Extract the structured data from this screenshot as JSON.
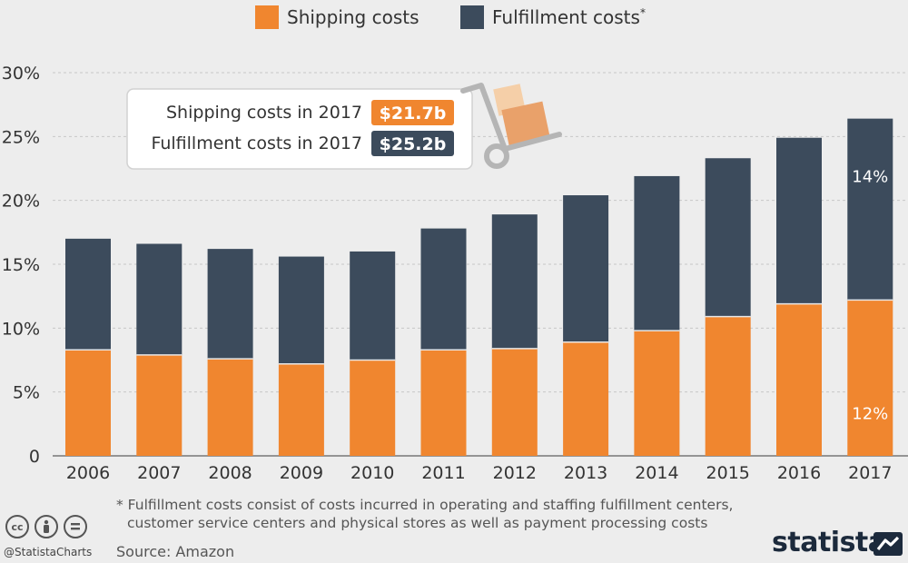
{
  "legend": {
    "items": [
      {
        "label": "Shipping costs",
        "color": "#f0862f"
      },
      {
        "label": "Fulfillment costs",
        "color": "#3c4b5c",
        "sup": "*"
      }
    ]
  },
  "callout": {
    "rows": [
      {
        "label": "Shipping costs in 2017",
        "value": "$21.7b",
        "color": "#f0862f"
      },
      {
        "label": "Fulfillment costs in 2017",
        "value": "$25.2b",
        "color": "#3c4b5c"
      }
    ],
    "icon": "hand-truck-boxes-icon"
  },
  "chart_data": {
    "type": "bar",
    "stacked": true,
    "categories": [
      "2006",
      "2007",
      "2008",
      "2009",
      "2010",
      "2011",
      "2012",
      "2013",
      "2014",
      "2015",
      "2016",
      "2017"
    ],
    "series": [
      {
        "name": "Shipping costs",
        "color": "#f0862f",
        "values": [
          8.3,
          7.9,
          7.6,
          7.2,
          7.5,
          8.3,
          8.4,
          8.9,
          9.8,
          10.9,
          11.9,
          12.2
        ]
      },
      {
        "name": "Fulfillment costs",
        "color": "#3c4b5c",
        "values": [
          8.7,
          8.7,
          8.6,
          8.4,
          8.5,
          9.5,
          10.5,
          11.5,
          12.1,
          12.4,
          13.0,
          14.2
        ]
      }
    ],
    "ylim": [
      0,
      30
    ],
    "y_ticks": [
      0,
      5,
      10,
      15,
      20,
      25,
      30
    ],
    "y_tick_labels": [
      "0",
      "5%",
      "10%",
      "15%",
      "20%",
      "25%",
      "30%"
    ],
    "data_labels": [
      {
        "category": "2017",
        "series": "Fulfillment costs",
        "text": "14%"
      },
      {
        "category": "2017",
        "series": "Shipping costs",
        "text": "12%"
      }
    ],
    "grid": "horizontal dashed",
    "legend_position": "top"
  },
  "footnote": {
    "line1": "* Fulfillment costs consist of costs incurred in operating and staffing fulfillment centers,",
    "line2": "customer service centers and physical stores as well as payment processing costs"
  },
  "source": "Source: Amazon",
  "handle": "@StatistaCharts",
  "license_icons": [
    "cc-icon",
    "by-icon",
    "nd-icon"
  ],
  "brand": {
    "name": "statista"
  }
}
